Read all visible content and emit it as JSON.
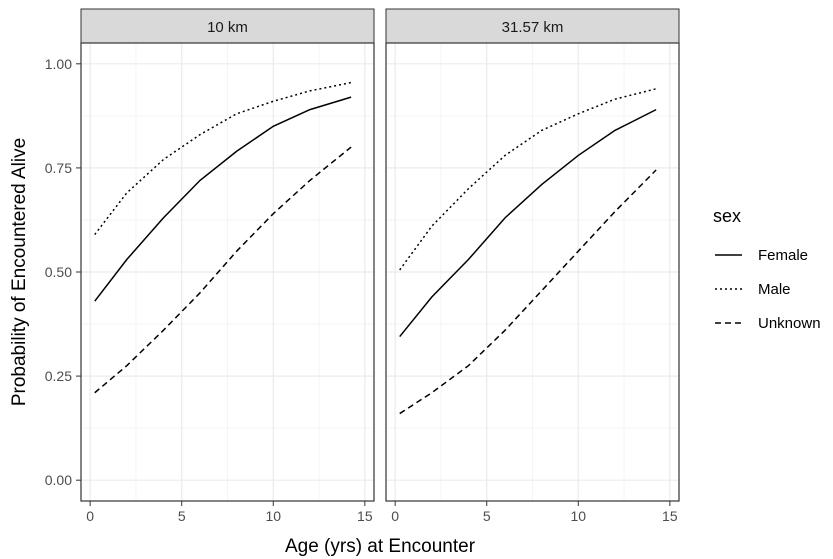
{
  "chart_data": {
    "type": "line",
    "xlabel": "Age (yrs) at Encounter",
    "ylabel": "Probability of Encountered Alive",
    "xlim": [
      -0.5,
      15.5
    ],
    "ylim": [
      -0.05,
      1.05
    ],
    "x_ticks": [
      0,
      5,
      10,
      15
    ],
    "x_tick_labels": [
      "0",
      "5",
      "10",
      "15"
    ],
    "y_ticks": [
      0,
      0.25,
      0.5,
      0.75,
      1.0
    ],
    "y_tick_labels": [
      "0.00",
      "0.25",
      "0.50",
      "0.75",
      "1.00"
    ],
    "grid": true,
    "legend": {
      "title": "sex",
      "position": "right",
      "entries": [
        {
          "label": "Female",
          "dash": "solid"
        },
        {
          "label": "Male",
          "dash": "dotted"
        },
        {
          "label": "Unknown",
          "dash": "dashed"
        }
      ]
    },
    "panels": [
      {
        "strip": "10 km",
        "x": [
          0.25,
          2,
          4,
          6,
          8,
          10,
          12,
          14.25
        ],
        "series": [
          {
            "name": "Female",
            "dash": "solid",
            "values": [
              0.43,
              0.53,
              0.63,
              0.72,
              0.79,
              0.85,
              0.89,
              0.92
            ]
          },
          {
            "name": "Male",
            "dash": "dotted",
            "values": [
              0.59,
              0.69,
              0.77,
              0.83,
              0.88,
              0.91,
              0.935,
              0.955
            ]
          },
          {
            "name": "Unknown",
            "dash": "dashed",
            "values": [
              0.21,
              0.275,
              0.36,
              0.45,
              0.55,
              0.64,
              0.72,
              0.8
            ]
          }
        ]
      },
      {
        "strip": "31.57 km",
        "x": [
          0.25,
          2,
          4,
          6,
          8,
          10,
          12,
          14.25
        ],
        "series": [
          {
            "name": "Female",
            "dash": "solid",
            "values": [
              0.345,
              0.44,
              0.53,
              0.63,
              0.71,
              0.78,
              0.84,
              0.89
            ]
          },
          {
            "name": "Male",
            "dash": "dotted",
            "values": [
              0.505,
              0.61,
              0.7,
              0.78,
              0.84,
              0.88,
              0.915,
              0.94
            ]
          },
          {
            "name": "Unknown",
            "dash": "dashed",
            "values": [
              0.16,
              0.21,
              0.275,
              0.36,
              0.455,
              0.55,
              0.645,
              0.745
            ]
          }
        ]
      }
    ]
  }
}
